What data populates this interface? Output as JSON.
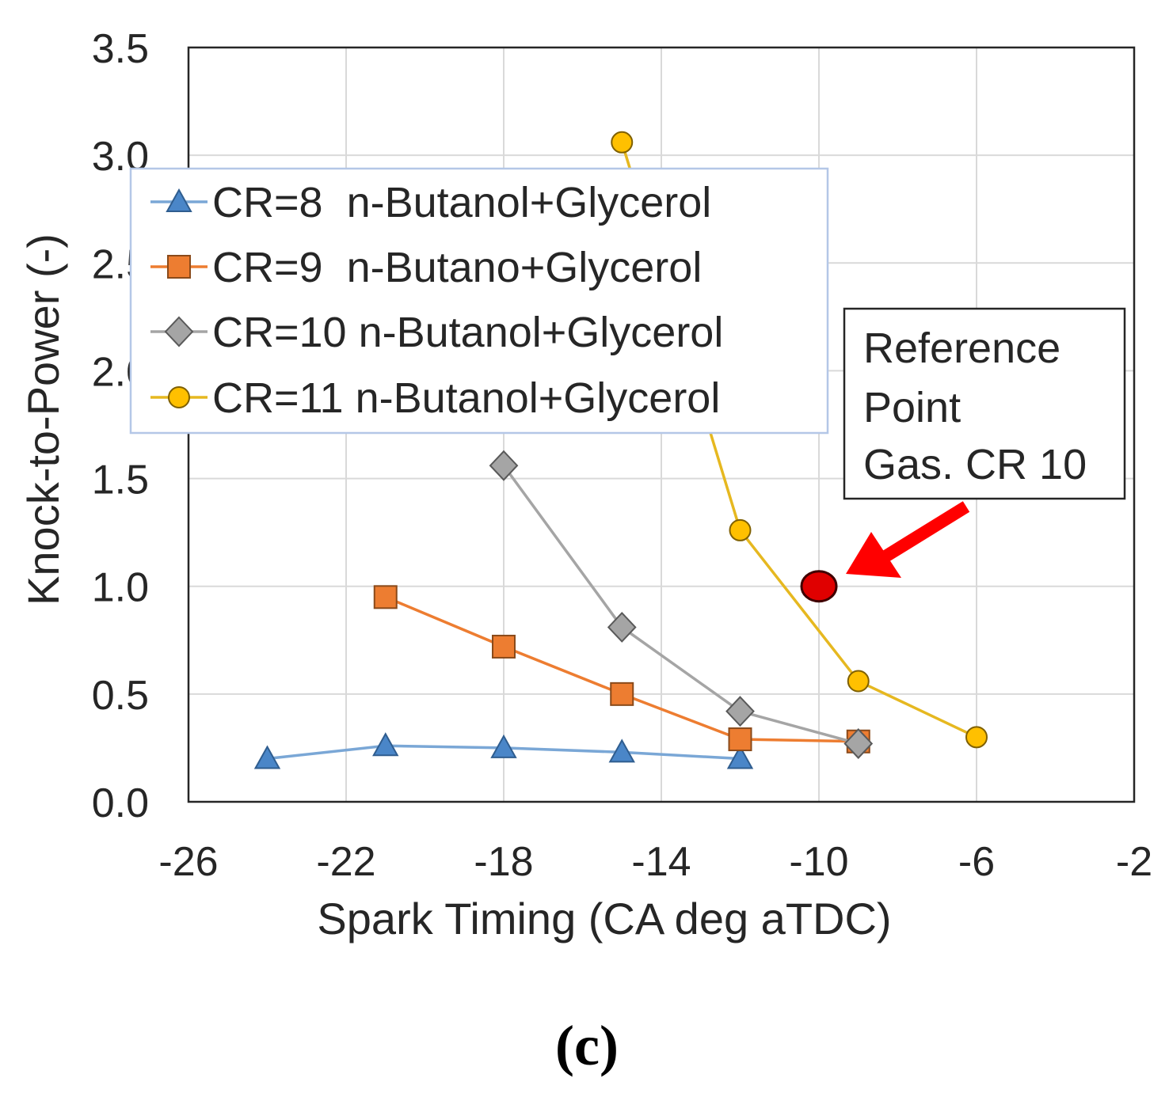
{
  "chart_data": {
    "type": "line",
    "title": "",
    "xlabel": "Spark Timing (CA deg aTDC)",
    "ylabel": "Knock-to-Power  (-)",
    "xlim": [
      -26,
      -2
    ],
    "ylim": [
      0,
      3.5
    ],
    "xticks": [
      "-26",
      "-22",
      "-18",
      "-14",
      "-10",
      "-6",
      "-2"
    ],
    "yticks": [
      "0.0",
      "0.5",
      "1.0",
      "1.5",
      "2.0",
      "2.5",
      "3.0",
      "3.5"
    ],
    "grid": true,
    "legend_position": "top-left",
    "series": [
      {
        "name": "CR=8  n-Butanol+Glycerol",
        "marker": "triangle",
        "color": "#4a86c8",
        "line_color": "#7aa7d6",
        "x": [
          -24,
          -21,
          -18,
          -15,
          -12
        ],
        "y": [
          0.2,
          0.26,
          0.25,
          0.23,
          0.2
        ]
      },
      {
        "name": "CR=9  n-Butano+Glycerol",
        "marker": "square",
        "color": "#ed7d31",
        "line_color": "#ed7d31",
        "x": [
          -21,
          -18,
          -15,
          -12,
          -9
        ],
        "y": [
          0.95,
          0.72,
          0.5,
          0.29,
          0.28
        ]
      },
      {
        "name": "CR=10 n-Butanol+Glycerol",
        "marker": "diamond",
        "color": "#a5a5a5",
        "line_color": "#a5a5a5",
        "x": [
          -18,
          -15,
          -12,
          -9
        ],
        "y": [
          1.56,
          0.81,
          0.42,
          0.27
        ]
      },
      {
        "name": "CR=11 n-Butanol+Glycerol",
        "marker": "circle",
        "color": "#ffc000",
        "line_color": "#e6b820",
        "x": [
          -15,
          -12,
          -9,
          -6
        ],
        "y": [
          3.06,
          1.26,
          0.56,
          0.3
        ]
      }
    ],
    "reference_point": {
      "x": -10,
      "y": 1.0,
      "color": "#e00000"
    },
    "annotation": {
      "lines": [
        "Reference",
        "Point",
        "Gas. CR 10"
      ],
      "arrow_color": "#ff0000"
    }
  },
  "caption": "(c)"
}
